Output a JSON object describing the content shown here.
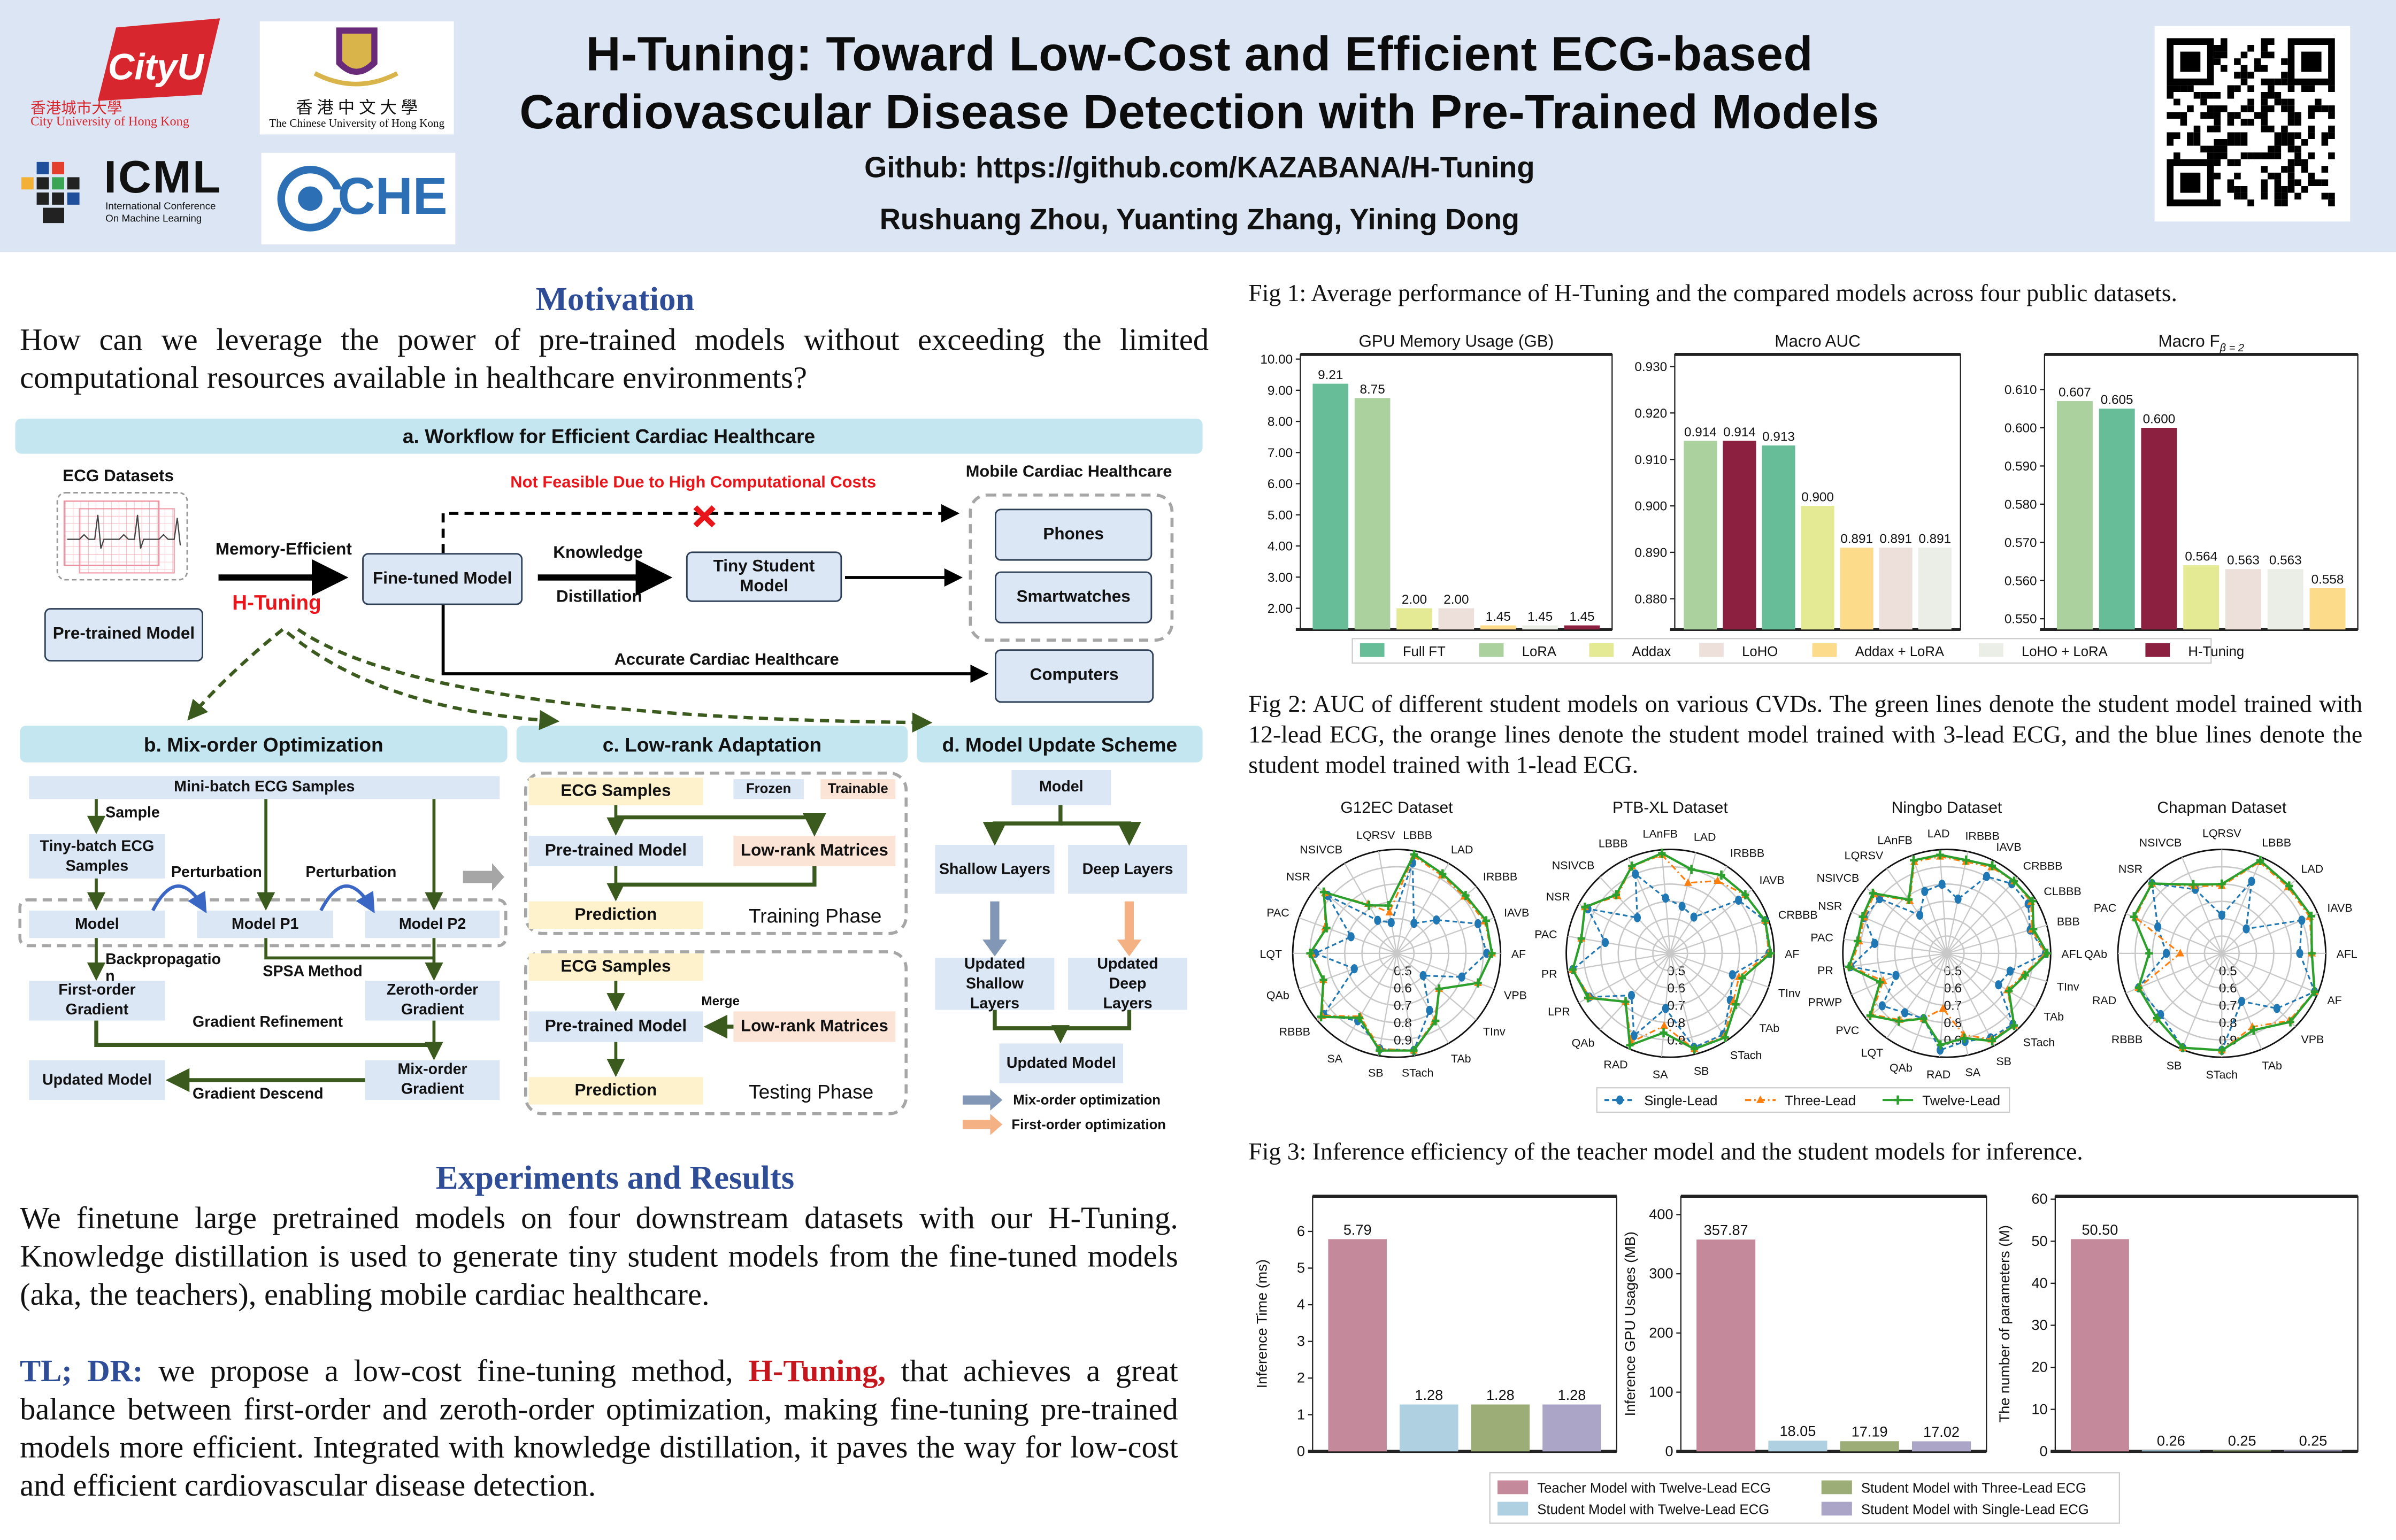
{
  "header": {
    "title_line1": "H-Tuning: Toward Low-Cost and Efficient ECG-based",
    "title_line2": "Cardiovascular Disease Detection with Pre-Trained Models",
    "github": "Github: https://github.com/KAZABANA/H-Tuning",
    "authors": "Rushuang Zhou, Yuanting Zhang, Yining Dong",
    "logos": {
      "cityu_mark": "CityU",
      "cityu_cn": "香港城市大學",
      "cityu_en": "City University of Hong Kong",
      "cuhk_cn": "香 港 中 文 大 學",
      "cuhk_en": "The Chinese University of Hong Kong",
      "icml": "ICML",
      "icml_sub1": "International Conference",
      "icml_sub2": "On Machine Learning",
      "che": "CHE"
    },
    "qr_icon": "qr-code"
  },
  "motivation": {
    "heading": "Motivation",
    "text": "How can we leverage the power of pre-trained models without exceeding the limited computational resources available in healthcare environments?"
  },
  "workflow": {
    "title": "a. Workflow for Efficient Cardiac Healthcare",
    "ecg_datasets": "ECG Datasets",
    "pretrained": "Pre-trained Model",
    "memory_efficient": "Memory-Efficient",
    "htuning": "H-Tuning",
    "finetuned": "Fine-tuned Model",
    "knowledge": "Knowledge",
    "distillation": "Distillation",
    "tiny_student": "Tiny Student Model",
    "not_feasible": "Not Feasible Due to High Computational Costs",
    "mobile": "Mobile Cardiac Healthcare",
    "phones": "Phones",
    "smartwatches": "Smartwatches",
    "computers": "Computers",
    "accurate": "Accurate Cardiac Healthcare",
    "accent_red": "#e8151b"
  },
  "mix_order": {
    "title": "b. Mix-order Optimization",
    "minibatch": "Mini-batch ECG Samples",
    "sample": "Sample",
    "tinybatch": "Tiny-batch ECG Samples",
    "perturbation1": "Perturbation",
    "perturbation2": "Perturbation",
    "model": "Model",
    "model_p1": "Model P1",
    "model_p2": "Model P2",
    "backprop": "Backpropagatio n",
    "spsa": "SPSA Method",
    "first_order": "First-order Gradient",
    "zeroth_order": "Zeroth-order Gradient",
    "refinement": "Gradient Refinement",
    "mix_grad": "Mix-order Gradient",
    "updated_model": "Updated Model",
    "descend": "Gradient Descend"
  },
  "lowrank": {
    "title": "c. Low-rank Adaptation",
    "ecg_samples_train": "ECG Samples",
    "frozen": "Frozen",
    "trainable": "Trainable",
    "pretrained_train": "Pre-trained Model",
    "lowrank_train": "Low-rank Matrices",
    "prediction_train": "Prediction",
    "training_phase": "Training Phase",
    "ecg_samples_test": "ECG Samples",
    "merge": "Merge",
    "pretrained_test": "Pre-trained Model",
    "lowrank_test": "Low-rank Matrices",
    "prediction_test": "Prediction",
    "testing_phase": "Testing Phase"
  },
  "update": {
    "title": "d. Model Update Scheme",
    "model": "Model",
    "shallow": "Shallow Layers",
    "deep": "Deep Layers",
    "updated_shallow": "Updated Shallow Layers",
    "updated_deep": "Updated Deep Layers",
    "updated_model": "Updated Model",
    "legend_mix": "Mix-order optimization",
    "legend_first": "First-order optimization",
    "mix_color": "#8197b5",
    "first_color": "#f4b183"
  },
  "experiments": {
    "heading": "Experiments and Results",
    "text": "We finetune large pretrained models on four downstream datasets with our H-Tuning. Knowledge distillation is used to generate tiny student models  from the fine-tuned models (aka, the teachers), enabling mobile cardiac healthcare.",
    "tldr_label": "TL; DR:",
    "tldr_pre": " we propose a low-cost fine-tuning method, ",
    "tldr_highlight": "H-Tuning,",
    "tldr_post": " that achieves a great balance between first-order and zeroth-order optimization,  making fine-tuning pre-trained models more efficient. Integrated with knowledge distillation, it paves the way for low-cost and efficient cardiovascular disease  detection."
  },
  "figures": {
    "fig1_caption": "Fig 1: Average performance of H-Tuning and the compared models across four public datasets.",
    "fig2_caption": "Fig 2: AUC of different student models on various CVDs. The green lines denote the student model trained with 12-lead ECG, the orange lines denote the student model trained with 3-lead ECG, and the blue lines denote the student model trained with 1-lead ECG.",
    "fig3_caption": "Fig 3: Inference efficiency of the teacher model and the student models for inference."
  },
  "fig1_legend": [
    {
      "name": "Full FT",
      "color": "#66bd98"
    },
    {
      "name": "LoRA",
      "color": "#abd19f"
    },
    {
      "name": "Addax",
      "color": "#e3ea93"
    },
    {
      "name": "LoHO",
      "color": "#ede0da"
    },
    {
      "name": "Addax + LoRA",
      "color": "#fcdb8a"
    },
    {
      "name": "LoHO + LoRA",
      "color": "#eaeee6"
    },
    {
      "name": "H-Tuning",
      "color": "#8b2040"
    }
  ],
  "fig2_legend": [
    {
      "name": "Single-Lead",
      "color": "#1f77b4"
    },
    {
      "name": "Three-Lead",
      "color": "#ff7f0e"
    },
    {
      "name": "Twelve-Lead",
      "color": "#2ca02c"
    }
  ],
  "fig3_legend": [
    {
      "name": "Teacher Model with Twelve-Lead ECG",
      "color": "#c48a9c"
    },
    {
      "name": "Student Model with Three-Lead ECG",
      "color": "#9cad78"
    },
    {
      "name": "Student Model with Twelve-Lead ECG",
      "color": "#aed0e0"
    },
    {
      "name": "Student Model with Single-Lead ECG",
      "color": "#aba6c8"
    }
  ],
  "chart_data": [
    {
      "type": "bar",
      "title": "GPU Memory Usage (GB)",
      "ylim": [
        1.32,
        10.15
      ],
      "yticks": [
        "2.00",
        "3.00",
        "4.00",
        "5.00",
        "6.00",
        "7.00",
        "8.00",
        "9.00",
        "10.00"
      ],
      "categories": [
        "Full FT",
        "LoRA",
        "Addax",
        "LoHO",
        "Addax + LoRA",
        "LoHO + LoRA",
        "H-Tuning"
      ],
      "values": [
        9.21,
        8.75,
        2.0,
        2.0,
        1.45,
        1.45,
        1.45
      ],
      "labels": [
        "9.21",
        "8.75",
        "2.00",
        "2.00",
        "1.45",
        "1.45",
        "1.45"
      ]
    },
    {
      "type": "bar",
      "title": "Macro AUC",
      "ylim": [
        0.8734,
        0.9326
      ],
      "yticks": [
        "0.880",
        "0.890",
        "0.900",
        "0.910",
        "0.920",
        "0.930"
      ],
      "categories": [
        "LoRA",
        "H-Tuning",
        "Full FT",
        "Addax",
        "Addax + LoRA",
        "LoHO",
        "LoHO + LoRA"
      ],
      "values": [
        0.914,
        0.914,
        0.913,
        0.9,
        0.891,
        0.891,
        0.891
      ],
      "labels": [
        "0.914",
        "0.914",
        "0.913",
        "0.900",
        "0.891",
        "0.891",
        "0.891"
      ]
    },
    {
      "type": "bar",
      "title": "Macro F",
      "title_subscript": "β = 2",
      "ylim": [
        0.5472,
        0.6192
      ],
      "yticks": [
        "0.550",
        "0.560",
        "0.570",
        "0.580",
        "0.590",
        "0.600",
        "0.610"
      ],
      "categories": [
        "LoRA",
        "Full FT",
        "H-Tuning",
        "Addax",
        "LoHO",
        "LoHO + LoRA",
        "Addax + LoRA"
      ],
      "values": [
        0.607,
        0.605,
        0.6,
        0.564,
        0.563,
        0.563,
        0.558
      ],
      "labels": [
        "0.607",
        "0.605",
        "0.600",
        "0.564",
        "0.563",
        "0.563",
        "0.558"
      ]
    },
    {
      "type": "radar",
      "title": "G12EC Dataset",
      "rlim": [
        0.4,
        1.0
      ],
      "rticks": [
        "0.5",
        "0.6",
        "0.7",
        "0.8",
        "0.9"
      ],
      "categories": [
        "LBBB",
        "LAD",
        "IRBBB",
        "IAVB",
        "AF",
        "VPB",
        "TInv",
        "TAb",
        "STach",
        "SB",
        "SA",
        "RBBB",
        "QAb",
        "LQT",
        "PAC",
        "NSR",
        "NSIVCB",
        "LQRSV"
      ],
      "series": [
        {
          "name": "Single-Lead",
          "values": [
            0.93,
            0.6,
            0.7,
            0.9,
            0.92,
            0.8,
            0.6,
            0.78,
            0.97,
            0.96,
            0.85,
            0.95,
            0.66,
            0.87,
            0.68,
            0.92,
            0.62,
            0.58
          ]
        },
        {
          "name": "Three-Lead",
          "values": [
            0.97,
            0.92,
            0.91,
            0.94,
            0.95,
            0.9,
            0.72,
            0.84,
            0.97,
            0.96,
            0.82,
            0.96,
            0.85,
            0.89,
            0.84,
            0.94,
            0.73,
            0.64
          ]
        },
        {
          "name": "Twelve-Lead",
          "values": [
            0.98,
            0.93,
            0.92,
            0.95,
            0.95,
            0.9,
            0.72,
            0.85,
            0.97,
            0.97,
            0.83,
            0.97,
            0.85,
            0.9,
            0.83,
            0.95,
            0.72,
            0.68
          ]
        }
      ]
    },
    {
      "type": "radar",
      "title": "PTB-XL Dataset",
      "rlim": [
        0.4,
        1.0
      ],
      "rticks": [
        "0.5",
        "0.6",
        "0.7",
        "0.8",
        "0.9"
      ],
      "categories": [
        "LAnFB",
        "LAD",
        "IRBBB",
        "IAVB",
        "CRBBB",
        "AF",
        "TInv",
        "TAb",
        "STach",
        "SB",
        "SA",
        "RAD",
        "QAb",
        "LPR",
        "PR",
        "PAC",
        "NSR",
        "NSIVCB",
        "LBBB"
      ],
      "series": [
        {
          "name": "Single-Lead",
          "values": [
            0.72,
            0.68,
            0.65,
            0.9,
            0.98,
            0.97,
            0.78,
            0.84,
            0.96,
            0.96,
            0.72,
            0.92,
            0.73,
            0.93,
            0.97,
            0.78,
            0.94,
            0.68,
            0.9
          ]
        },
        {
          "name": "Three-Lead",
          "values": [
            0.97,
            0.82,
            0.9,
            0.95,
            0.98,
            0.97,
            0.82,
            0.86,
            0.97,
            0.97,
            0.82,
            0.96,
            0.78,
            0.93,
            0.97,
            0.92,
            0.96,
            0.85,
            0.95
          ]
        },
        {
          "name": "Twelve-Lead",
          "values": [
            0.98,
            0.9,
            0.94,
            0.95,
            0.98,
            0.98,
            0.84,
            0.88,
            0.98,
            0.97,
            0.86,
            0.98,
            0.78,
            0.94,
            0.97,
            0.92,
            0.96,
            0.86,
            0.95
          ]
        }
      ]
    },
    {
      "type": "radar",
      "title": "Ningbo Dataset",
      "rlim": [
        0.4,
        1.0
      ],
      "rticks": [
        "0.5",
        "0.6",
        "0.7",
        "0.8",
        "0.9"
      ],
      "categories": [
        "LAD",
        "IRBBB",
        "IAVB",
        "CRBBB",
        "CLBBB",
        "BBB",
        "AFL",
        "TInv",
        "TAb",
        "STach",
        "SB",
        "SA",
        "RAD",
        "QAb",
        "LQT",
        "PVC",
        "PRWP",
        "PR",
        "PAC",
        "NSR",
        "NSIVCB",
        "LQRSV",
        "LAnFB"
      ],
      "series": [
        {
          "name": "Single-Lead",
          "values": [
            0.8,
            0.72,
            0.9,
            0.95,
            0.95,
            0.9,
            0.97,
            0.78,
            0.75,
            0.96,
            0.95,
            0.92,
            0.96,
            0.8,
            0.82,
            0.88,
            0.72,
            0.96,
            0.82,
            0.92,
            0.9,
            0.67,
            0.78
          ]
        },
        {
          "name": "Three-Lead",
          "values": [
            0.96,
            0.94,
            0.96,
            0.97,
            0.97,
            0.91,
            0.97,
            0.86,
            0.81,
            0.97,
            0.96,
            0.88,
            0.72,
            0.8,
            0.87,
            0.96,
            0.8,
            0.96,
            0.91,
            0.92,
            0.94,
            0.77,
            0.96
          ]
        },
        {
          "name": "Twelve-Lead",
          "values": [
            0.97,
            0.95,
            0.97,
            0.97,
            0.98,
            0.92,
            0.98,
            0.87,
            0.82,
            0.97,
            0.97,
            0.9,
            0.93,
            0.8,
            0.88,
            0.97,
            0.82,
            0.97,
            0.92,
            0.93,
            0.95,
            0.78,
            0.97
          ]
        }
      ]
    },
    {
      "type": "radar",
      "title": "Chapman Dataset",
      "rlim": [
        0.4,
        1.0
      ],
      "rticks": [
        "0.5",
        "0.6",
        "0.7",
        "0.8",
        "0.9"
      ],
      "categories": [
        "LBBB",
        "LAD",
        "IAVB",
        "AFL",
        "AF",
        "VPB",
        "TAb",
        "STach",
        "SB",
        "RBBB",
        "RAD",
        "QAb",
        "PAC",
        "NSR",
        "NSIVCB",
        "LQRSV"
      ],
      "series": [
        {
          "name": "Single-Lead",
          "values": [
            0.85,
            0.6,
            0.9,
            0.85,
            0.98,
            0.85,
            0.7,
            0.96,
            0.99,
            0.9,
            0.92,
            0.72,
            0.8,
            0.97,
            0.8,
            0.62
          ]
        },
        {
          "name": "Three-Lead",
          "values": [
            0.97,
            0.94,
            0.95,
            0.92,
            0.98,
            0.95,
            0.86,
            0.96,
            0.99,
            0.93,
            0.92,
            0.64,
            0.94,
            0.97,
            0.82,
            0.79
          ]
        },
        {
          "name": "Twelve-Lead",
          "values": [
            0.98,
            0.95,
            0.96,
            0.92,
            0.98,
            0.96,
            0.88,
            0.96,
            0.99,
            0.93,
            0.92,
            0.82,
            0.95,
            0.97,
            0.83,
            0.8
          ]
        }
      ]
    },
    {
      "type": "bar",
      "title": "",
      "ylabel": "Inference Time (ms)",
      "ylim": [
        0,
        6.96
      ],
      "yticks": [
        "0",
        "1",
        "2",
        "3",
        "4",
        "5",
        "6"
      ],
      "categories": [
        "Teacher Model with Twelve-Lead ECG",
        "Student Model with Twelve-Lead ECG",
        "Student Model with Three-Lead ECG",
        "Student Model with Single-Lead ECG"
      ],
      "values": [
        5.79,
        1.28,
        1.28,
        1.28
      ],
      "labels": [
        "5.79",
        "1.28",
        "1.28",
        "1.28"
      ]
    },
    {
      "type": "bar",
      "title": "",
      "ylabel": "Inference GPU Usages (MB)",
      "ylim": [
        0,
        431
      ],
      "yticks": [
        "0",
        "100",
        "200",
        "300",
        "400"
      ],
      "categories": [
        "Teacher Model with Twelve-Lead ECG",
        "Student Model with Twelve-Lead ECG",
        "Student Model with Three-Lead ECG",
        "Student Model with Single-Lead ECG"
      ],
      "values": [
        357.87,
        18.05,
        17.19,
        17.02
      ],
      "labels": [
        "357.87",
        "18.05",
        "17.19",
        "17.02"
      ]
    },
    {
      "type": "bar",
      "title": "",
      "ylabel": "The number of parameters (M)",
      "ylim": [
        0,
        60.7
      ],
      "yticks": [
        "0",
        "10",
        "20",
        "30",
        "40",
        "50",
        "60"
      ],
      "categories": [
        "Teacher Model with Twelve-Lead ECG",
        "Student Model with Twelve-Lead ECG",
        "Student Model with Three-Lead ECG",
        "Student Model with Single-Lead ECG"
      ],
      "values": [
        50.5,
        0.26,
        0.25,
        0.25
      ],
      "labels": [
        "50.50",
        "0.26",
        "0.25",
        "0.25"
      ]
    }
  ]
}
